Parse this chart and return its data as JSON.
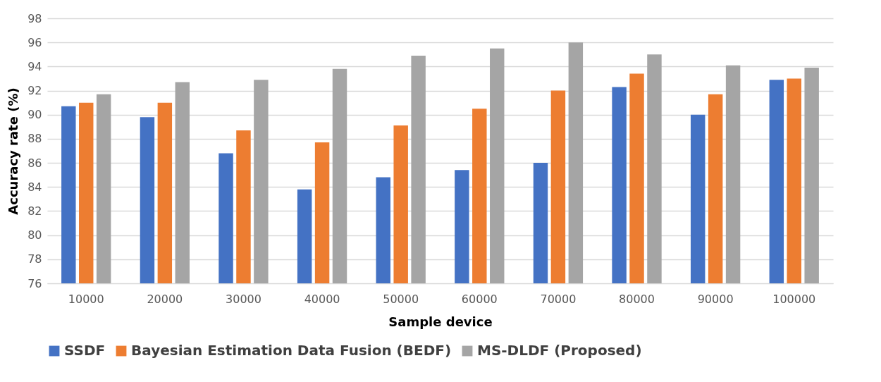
{
  "chart_data": {
    "type": "bar",
    "xlabel": "Sample device",
    "ylabel": "Accuracy rate (%)",
    "categories": [
      "10000",
      "20000",
      "30000",
      "40000",
      "50000",
      "60000",
      "70000",
      "80000",
      "90000",
      "100000"
    ],
    "series": [
      {
        "name": "SSDF",
        "color": "#4472c4",
        "values": [
          90.7,
          89.8,
          86.8,
          83.8,
          84.8,
          85.4,
          86.0,
          92.3,
          90.0,
          92.9
        ]
      },
      {
        "name": "Bayesian Estimation Data Fusion (BEDF)",
        "color": "#ed7d31",
        "values": [
          91.0,
          91.0,
          88.7,
          87.7,
          89.1,
          90.5,
          92.0,
          93.4,
          91.7,
          93.0
        ]
      },
      {
        "name": "MS-DLDF (Proposed)",
        "color": "#a5a5a5",
        "values": [
          91.7,
          92.7,
          92.9,
          93.8,
          94.9,
          95.5,
          96.0,
          95.0,
          94.1,
          93.9
        ]
      }
    ],
    "ylim": [
      76,
      98
    ],
    "yticks": [
      76,
      78,
      80,
      82,
      84,
      86,
      88,
      90,
      92,
      94,
      96,
      98
    ],
    "grid": "y",
    "legend": "bottom"
  }
}
